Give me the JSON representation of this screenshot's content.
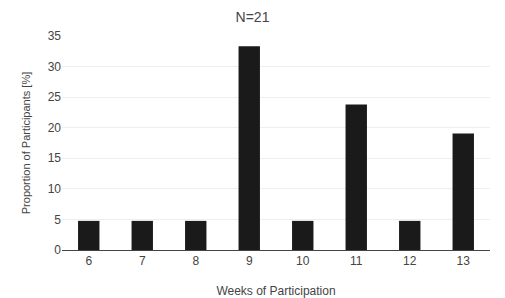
{
  "chart_data": {
    "type": "bar",
    "title": "N=21",
    "xlabel": "Weeks of Participation",
    "ylabel": "Proportion of Participants [%]",
    "categories": [
      6,
      7,
      8,
      9,
      10,
      11,
      12,
      13
    ],
    "values": [
      4.762,
      4.762,
      4.762,
      33.333,
      4.762,
      23.81,
      4.762,
      19.048
    ],
    "color": "#1a1a1a",
    "ylim": [
      0,
      35
    ],
    "yticks": [
      0,
      5,
      10,
      15,
      20,
      25,
      30,
      35
    ],
    "grid": true
  }
}
